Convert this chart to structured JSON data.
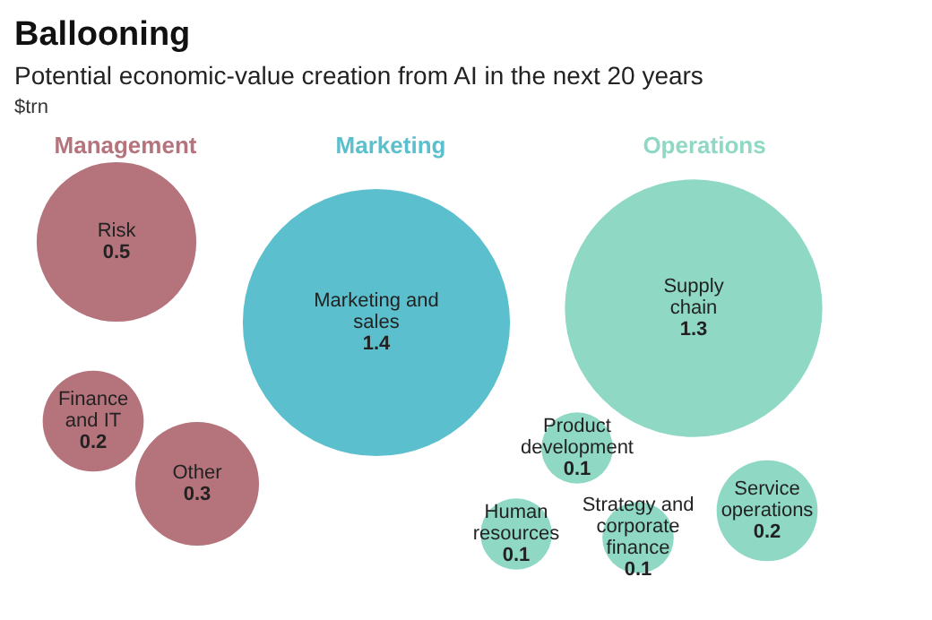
{
  "chart_data": {
    "type": "other",
    "title": "Ballooning",
    "subtitle": "Potential economic-value creation from AI in the next 20 years",
    "ylabel": "$trn",
    "data_labels": true,
    "categories": [
      "Risk",
      "Finance and IT",
      "Other",
      "Marketing and sales",
      "Supply chain",
      "Product development",
      "Human resources",
      "Strategy and corporate finance",
      "Service operations"
    ],
    "series": [
      {
        "name": "Management",
        "color": "#b5737c",
        "values": [
          0.5,
          0.2,
          0.3,
          null,
          null,
          null,
          null,
          null,
          null
        ]
      },
      {
        "name": "Marketing",
        "color": "#5bbfcd",
        "values": [
          null,
          null,
          null,
          1.4,
          null,
          null,
          null,
          null,
          null
        ]
      },
      {
        "name": "Operations",
        "color": "#8ed8c4",
        "values": [
          null,
          null,
          null,
          null,
          1.3,
          0.1,
          0.1,
          0.1,
          0.2
        ]
      }
    ]
  }
}
